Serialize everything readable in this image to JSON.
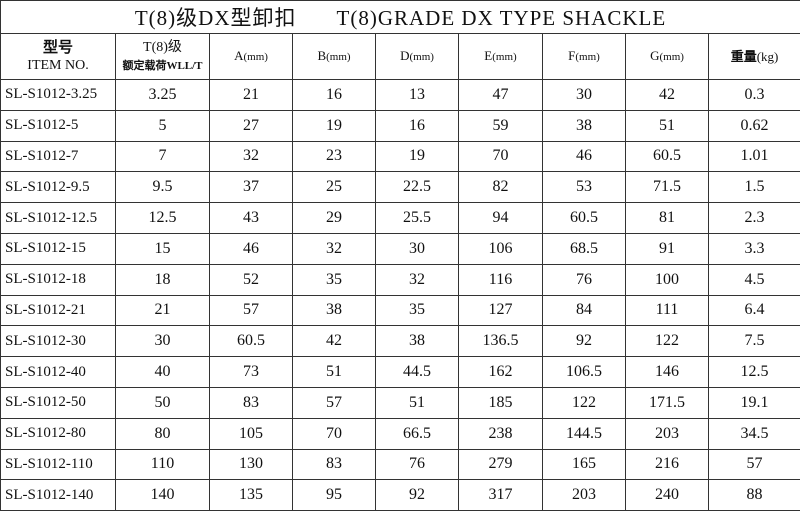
{
  "title_cn": "T(8)级DX型卸扣",
  "title_en": "T(8)GRADE DX TYPE SHACKLE",
  "headers": {
    "item_cn": "型号",
    "item_en": "ITEM NO.",
    "wll_top": "T(8)级",
    "wll_bottom": "额定载荷WLL/T",
    "a": "A",
    "b": "B",
    "d": "D",
    "e": "E",
    "f": "F",
    "g": "G",
    "mm": "(mm)",
    "weight": "重量",
    "kg": "(kg)"
  },
  "rows": [
    [
      "SL-S1012-3.25",
      "3.25",
      "21",
      "16",
      "13",
      "47",
      "30",
      "42",
      "0.3"
    ],
    [
      "SL-S1012-5",
      "5",
      "27",
      "19",
      "16",
      "59",
      "38",
      "51",
      "0.62"
    ],
    [
      "SL-S1012-7",
      "7",
      "32",
      "23",
      "19",
      "70",
      "46",
      "60.5",
      "1.01"
    ],
    [
      "SL-S1012-9.5",
      "9.5",
      "37",
      "25",
      "22.5",
      "82",
      "53",
      "71.5",
      "1.5"
    ],
    [
      "SL-S1012-12.5",
      "12.5",
      "43",
      "29",
      "25.5",
      "94",
      "60.5",
      "81",
      "2.3"
    ],
    [
      "SL-S1012-15",
      "15",
      "46",
      "32",
      "30",
      "106",
      "68.5",
      "91",
      "3.3"
    ],
    [
      "SL-S1012-18",
      "18",
      "52",
      "35",
      "32",
      "116",
      "76",
      "100",
      "4.5"
    ],
    [
      "SL-S1012-21",
      "21",
      "57",
      "38",
      "35",
      "127",
      "84",
      "111",
      "6.4"
    ],
    [
      "SL-S1012-30",
      "30",
      "60.5",
      "42",
      "38",
      "136.5",
      "92",
      "122",
      "7.5"
    ],
    [
      "SL-S1012-40",
      "40",
      "73",
      "51",
      "44.5",
      "162",
      "106.5",
      "146",
      "12.5"
    ],
    [
      "SL-S1012-50",
      "50",
      "83",
      "57",
      "51",
      "185",
      "122",
      "171.5",
      "19.1"
    ],
    [
      "SL-S1012-80",
      "80",
      "105",
      "70",
      "66.5",
      "238",
      "144.5",
      "203",
      "34.5"
    ],
    [
      "SL-S1012-110",
      "110",
      "130",
      "83",
      "76",
      "279",
      "165",
      "216",
      "57"
    ],
    [
      "SL-S1012-140",
      "140",
      "135",
      "95",
      "92",
      "317",
      "203",
      "240",
      "88"
    ]
  ]
}
